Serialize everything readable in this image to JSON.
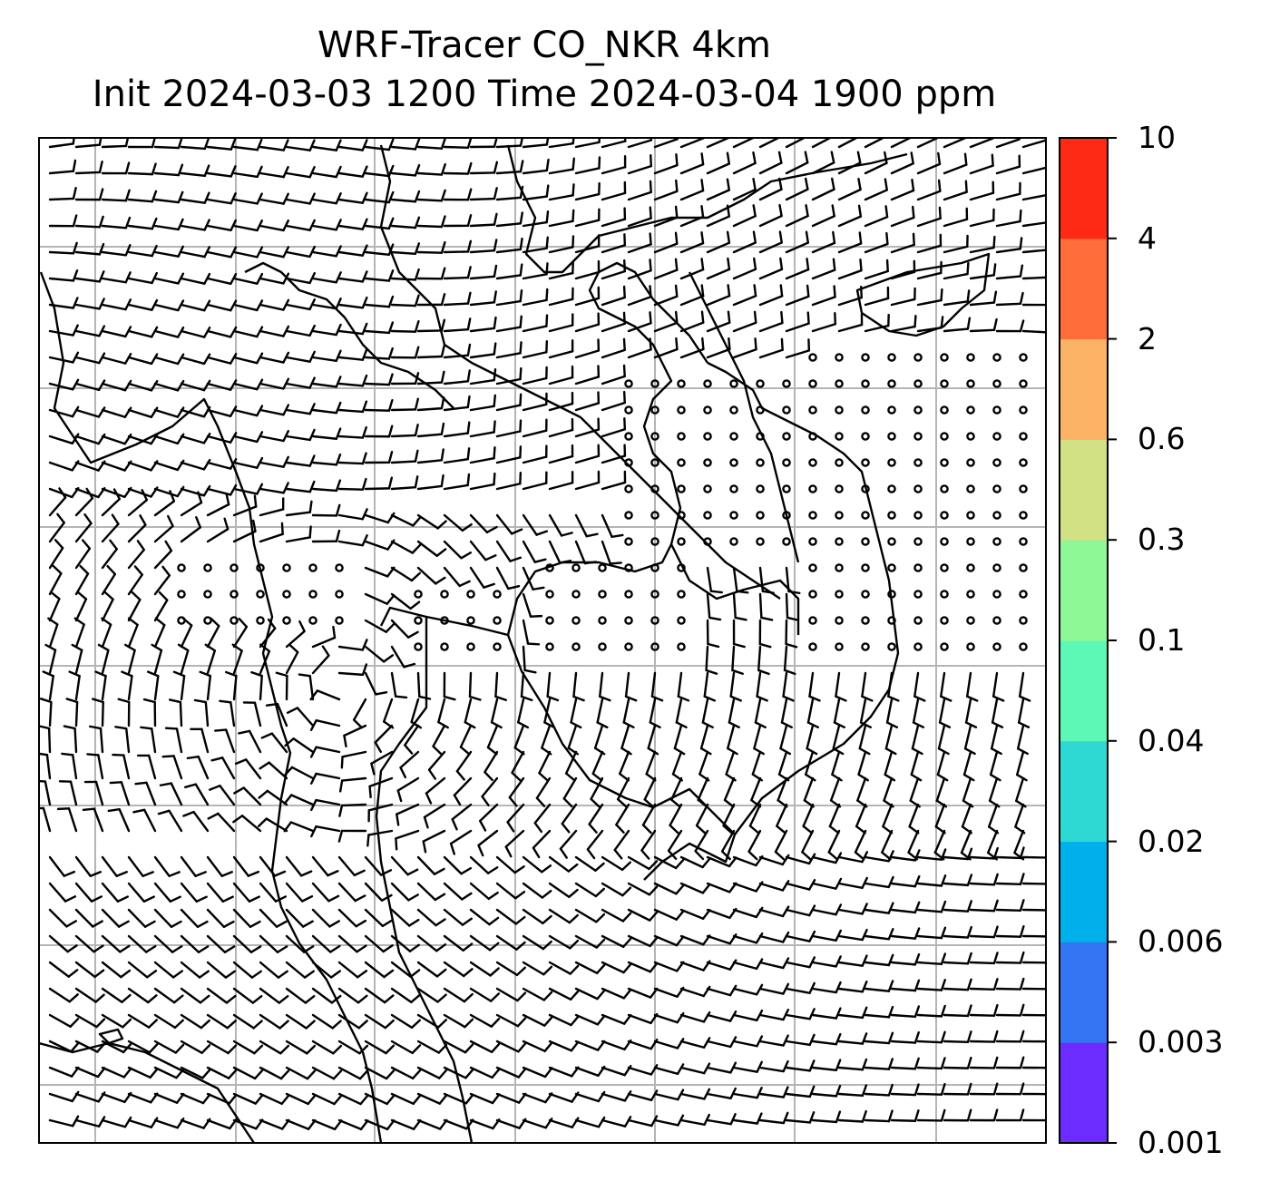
{
  "title": {
    "line1": "WRF-Tracer CO_NKR 4km",
    "line2": "Init 2024-03-03 1200 Time 2024-03-04 1900 ppm"
  },
  "colorbar": {
    "levels": [
      "0.001",
      "0.003",
      "0.006",
      "0.02",
      "0.04",
      "0.1",
      "0.3",
      "0.6",
      "2",
      "4",
      "10"
    ],
    "colors": [
      "#6c2bff",
      "#3375f2",
      "#00b0ea",
      "#2ed8d3",
      "#5ef8b6",
      "#8ef897",
      "#d2e183",
      "#fbb365",
      "#ff6e3a",
      "#ff2a16"
    ]
  },
  "map": {
    "gridlines": "on",
    "wind_barbs": "on",
    "calm_wind_symbol": "circle"
  }
}
